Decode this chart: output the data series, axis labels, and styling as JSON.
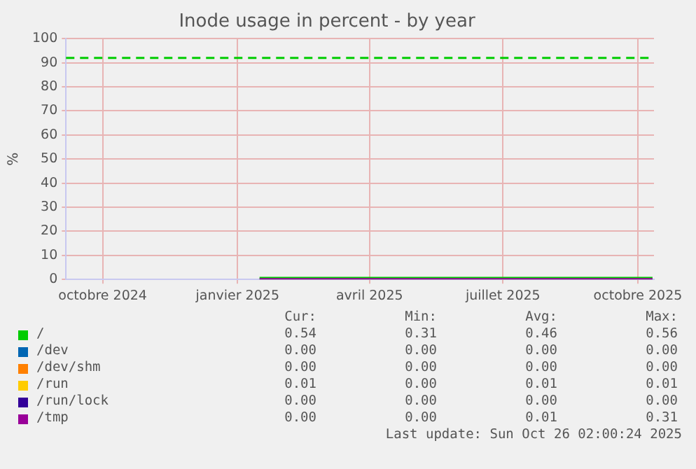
{
  "chart_data": {
    "type": "line",
    "title": "Inode usage in percent - by year",
    "ylabel": "%",
    "x": [
      "2025-01-16",
      "2025-10-11"
    ],
    "series": [
      {
        "name": "/",
        "color": "#00cc00",
        "values": [
          0.5,
          0.5
        ]
      },
      {
        "name": "/dev",
        "color": "#0066b3",
        "values": [
          null,
          null
        ]
      },
      {
        "name": "/dev/shm",
        "color": "#ff8000",
        "values": [
          null,
          null
        ]
      },
      {
        "name": "/run",
        "color": "#ffcc00",
        "values": [
          null,
          null
        ]
      },
      {
        "name": "/run/lock",
        "color": "#330099",
        "values": [
          null,
          null
        ]
      },
      {
        "name": "/tmp",
        "color": "#990099",
        "values": [
          0,
          0
        ]
      }
    ],
    "xlim": [
      "2024-09-06",
      "2025-10-12"
    ],
    "xticks": [
      {
        "value": "2024-10-01",
        "label": "octobre 2024"
      },
      {
        "value": "2025-01-01",
        "label": "janvier 2025"
      },
      {
        "value": "2025-04-01",
        "label": "avril 2025"
      },
      {
        "value": "2025-07-01",
        "label": "juillet 2025"
      },
      {
        "value": "2025-10-01",
        "label": "octobre 2025"
      }
    ],
    "ylim": [
      0,
      100
    ],
    "yticks": [
      0,
      10,
      20,
      30,
      40,
      50,
      60,
      70,
      80,
      90,
      100
    ],
    "ref_lines": [
      {
        "axis": "y",
        "value": 92,
        "color": "#00cc00",
        "line_style": "dashed"
      }
    ],
    "grid": true,
    "legend": "bottom",
    "marker": "none",
    "line_style": "solid",
    "annotations": [
      "Cur:",
      "Min:",
      "Avg:",
      "Max:",
      "0.54",
      "0.31",
      "0.46",
      "0.56",
      "0.00",
      "0.00",
      "0.00",
      "0.00",
      "0.00",
      "0.00",
      "0.00",
      "0.00",
      "0.01",
      "0.00",
      "0.01",
      "0.01",
      "0.00",
      "0.00",
      "0.00",
      "0.00",
      "0.00",
      "0.00",
      "0.01",
      "0.31",
      "Last update: Sun Oct 26 02:00:24 2025"
    ]
  }
}
